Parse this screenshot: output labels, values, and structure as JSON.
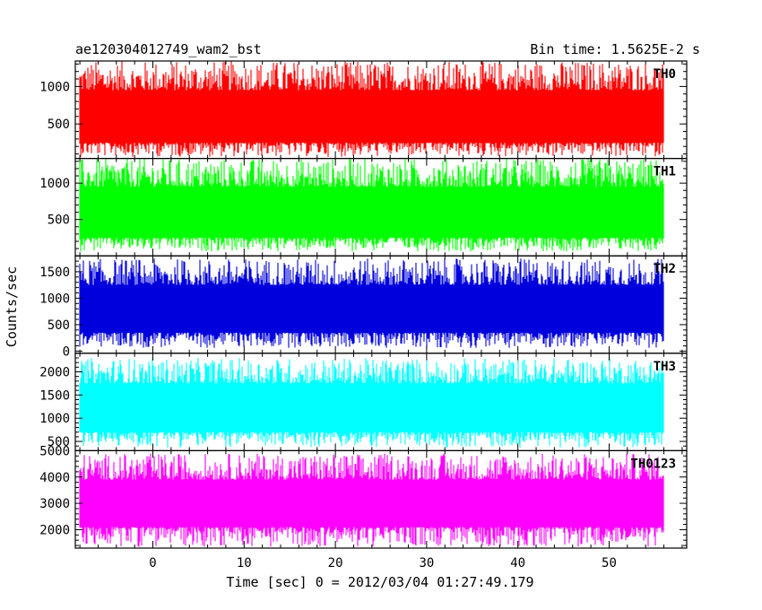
{
  "chart_data": {
    "type": "line",
    "title": "ae120304012749_wam2_bst",
    "bin_time": "Bin time: 1.5625E-2 s",
    "xlabel": "Time [sec] 0 = 2012/03/04 01:27:49.179",
    "ylabel": "Counts/sec",
    "xlim": [
      -8.5,
      58.5
    ],
    "x_data_range": [
      -8,
      56
    ],
    "xticks": [
      0,
      10,
      20,
      30,
      40,
      50
    ],
    "xtick_labels": [
      "0",
      "10",
      "20",
      "30",
      "40",
      "50"
    ],
    "panels": [
      {
        "name": "TH0",
        "color": "#ff0000",
        "ylim": [
          40,
          1340
        ],
        "yticks": [
          500,
          1000
        ],
        "ytick_labels": [
          "500",
          "1000"
        ],
        "band": [
          60,
          1340
        ],
        "core": [
          250,
          950
        ]
      },
      {
        "name": "TH1",
        "color": "#00ff00",
        "ylim": [
          0,
          1340
        ],
        "yticks": [
          500,
          1000
        ],
        "ytick_labels": [
          "500",
          "1000"
        ],
        "band": [
          60,
          1340
        ],
        "core": [
          250,
          950
        ]
      },
      {
        "name": "TH2",
        "color": "#0000dd",
        "ylim": [
          -40,
          1800
        ],
        "yticks": [
          0,
          500,
          1000,
          1500
        ],
        "ytick_labels": [
          "0",
          "500",
          "1000",
          "1500"
        ],
        "band": [
          60,
          1750
        ],
        "core": [
          350,
          1250
        ]
      },
      {
        "name": "TH3",
        "color": "#00ffff",
        "ylim": [
          300,
          2400
        ],
        "yticks": [
          500,
          1000,
          1500,
          2000
        ],
        "ytick_labels": [
          "500",
          "1000",
          "1500",
          "2000"
        ],
        "band": [
          370,
          2300
        ],
        "core": [
          700,
          1750
        ]
      },
      {
        "name": "TH0123",
        "color": "#ff00ff",
        "ylim": [
          1300,
          5000
        ],
        "yticks": [
          2000,
          3000,
          4000,
          5000
        ],
        "ytick_labels": [
          "2000",
          "3000",
          "4000",
          "5000"
        ],
        "band": [
          1350,
          4900
        ],
        "core": [
          2100,
          3900
        ]
      }
    ]
  }
}
